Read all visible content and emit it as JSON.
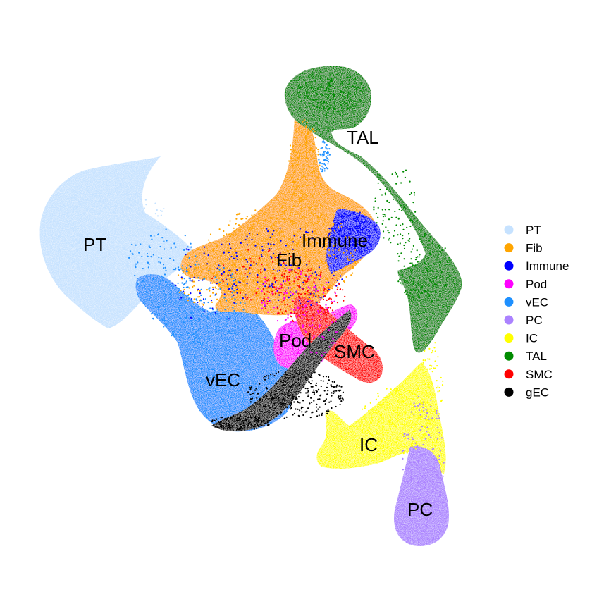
{
  "chart_data": {
    "type": "scatter",
    "title": "",
    "xlabel": "",
    "ylabel": "",
    "grid": false,
    "legend_position": "right",
    "clusters": [
      {
        "name": "PT",
        "color": "#C6E2FF",
        "label": "PT"
      },
      {
        "name": "Fib",
        "color": "#FFA500",
        "label": "Fib"
      },
      {
        "name": "Immune",
        "color": "#0000FF",
        "label": "Immune"
      },
      {
        "name": "Pod",
        "color": "#FF00FF",
        "label": "Pod"
      },
      {
        "name": "vEC",
        "color": "#1E90FF",
        "label": "vEC"
      },
      {
        "name": "PC",
        "color": "#AB82FF",
        "label": "PC"
      },
      {
        "name": "IC",
        "color": "#FFFF00",
        "label": "IC"
      },
      {
        "name": "TAL",
        "color": "#008B00",
        "label": "TAL"
      },
      {
        "name": "SMC",
        "color": "#FF0000",
        "label": "SMC"
      },
      {
        "name": "gEC",
        "color": "#000000",
        "label": ""
      }
    ]
  }
}
